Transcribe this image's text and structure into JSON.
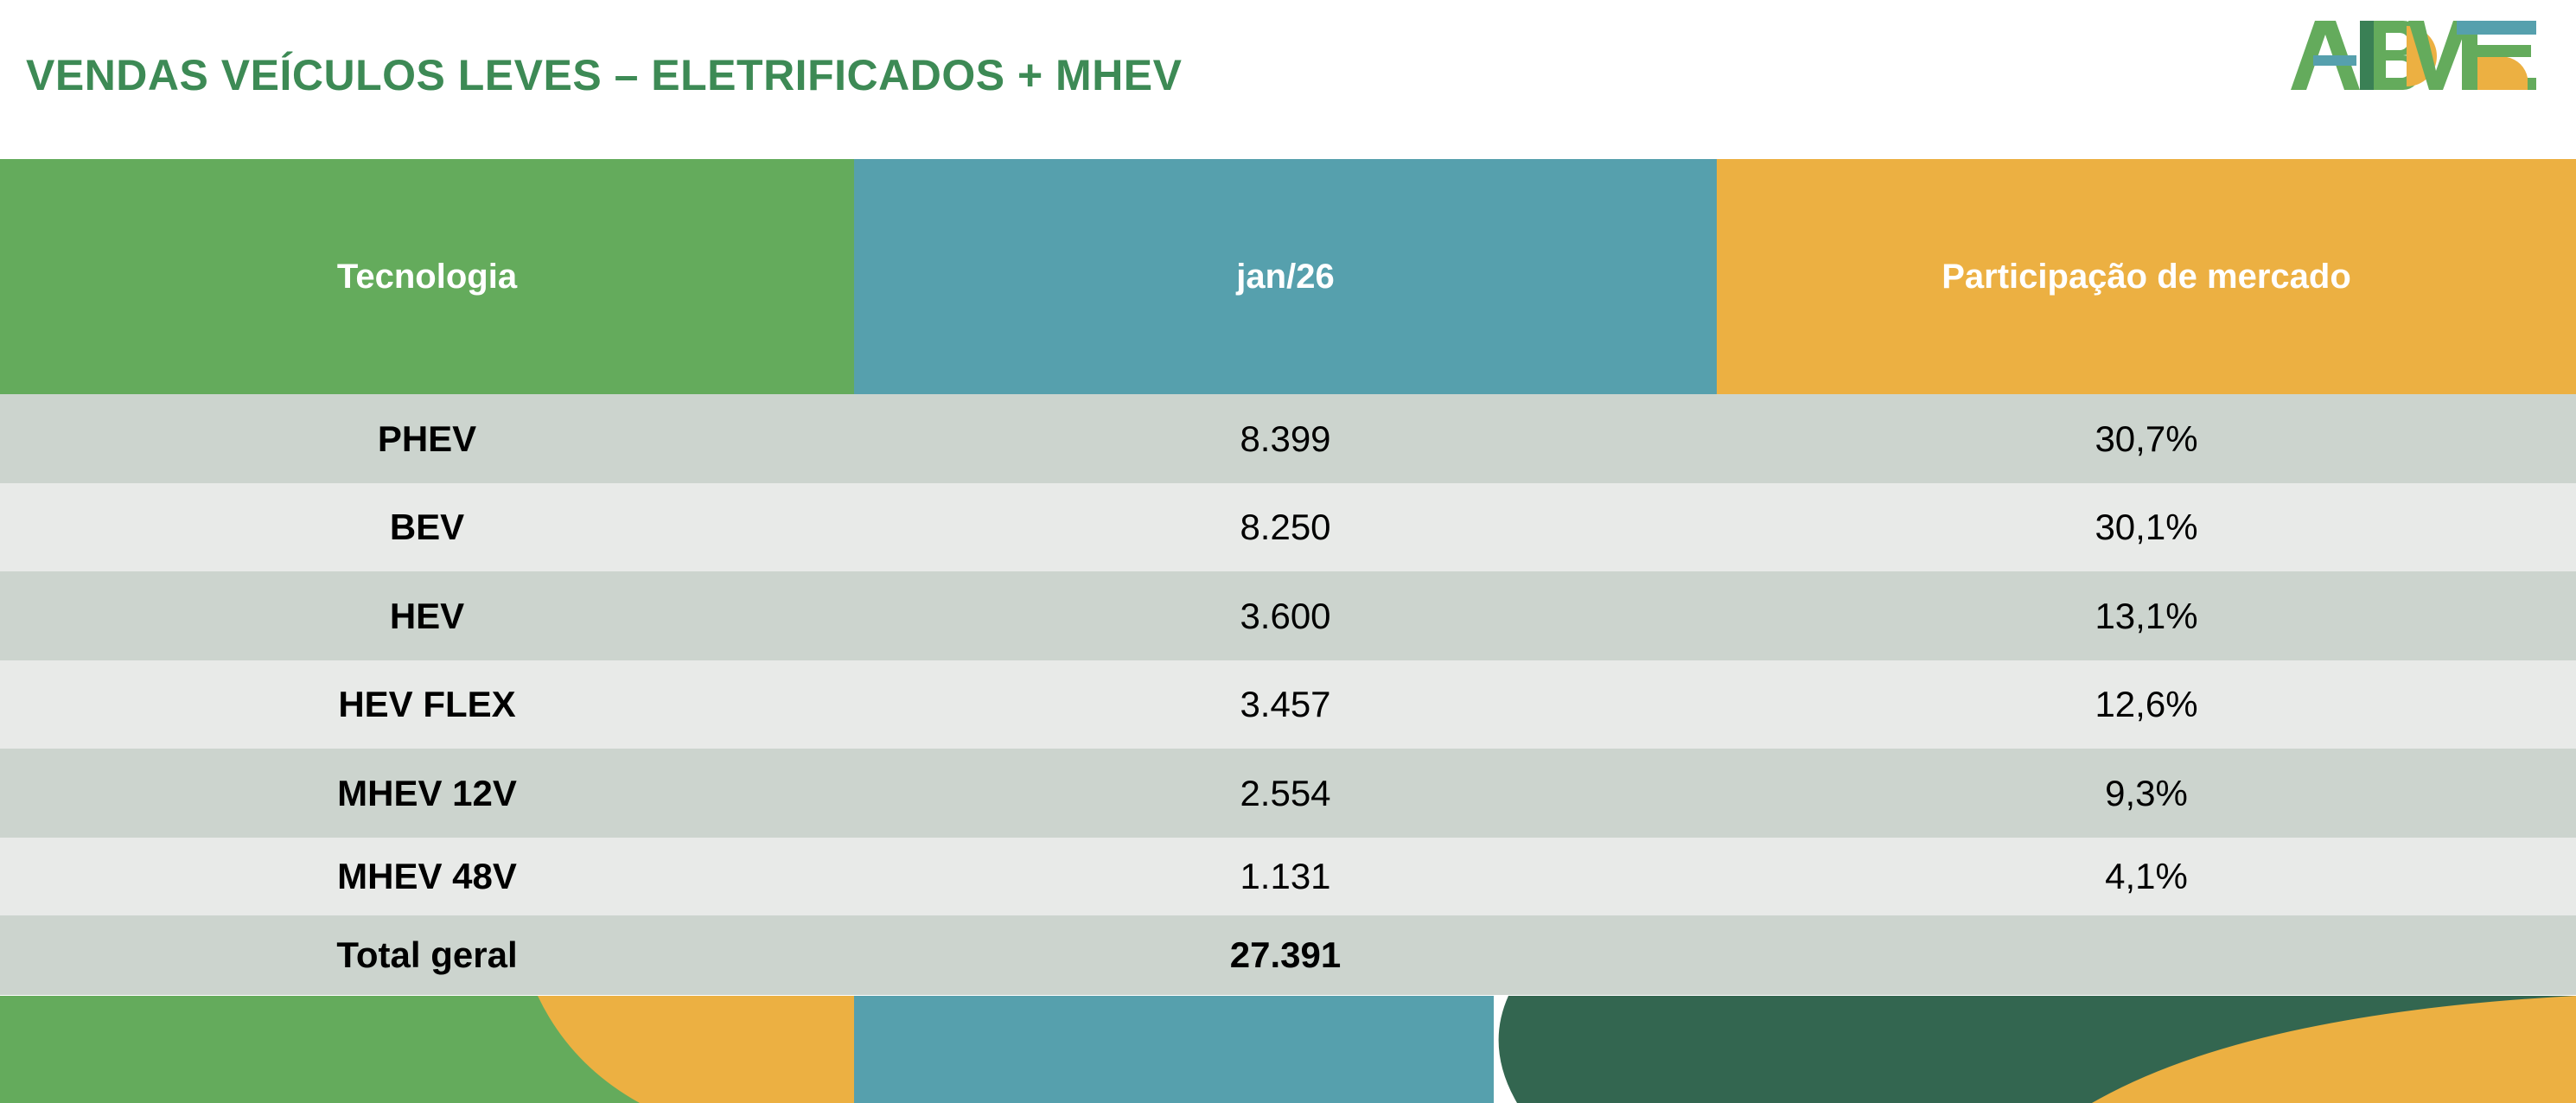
{
  "title": "VENDAS VEÍCULOS LEVES – ELETRIFICADOS + MHEV",
  "logo": {
    "text": "ABVE",
    "colors": [
      "#64ab5c",
      "#56a0ad",
      "#ecb042",
      "#3a8055"
    ]
  },
  "table": {
    "headers": [
      "Tecnologia",
      "jan/26",
      "Participação de mercado"
    ],
    "rows": [
      {
        "tech": "PHEV",
        "sales": "8.399",
        "share": "30,7%"
      },
      {
        "tech": "BEV",
        "sales": "8.250",
        "share": "30,1%"
      },
      {
        "tech": "HEV",
        "sales": "3.600",
        "share": "13,1%"
      },
      {
        "tech": "HEV FLEX",
        "sales": "3.457",
        "share": "12,6%"
      },
      {
        "tech": "MHEV 12V",
        "sales": "2.554",
        "share": "9,3%"
      },
      {
        "tech": "MHEV 48V",
        "sales": "1.131",
        "share": "4,1%"
      }
    ],
    "total": {
      "label": "Total geral",
      "sales": "27.391"
    }
  }
}
